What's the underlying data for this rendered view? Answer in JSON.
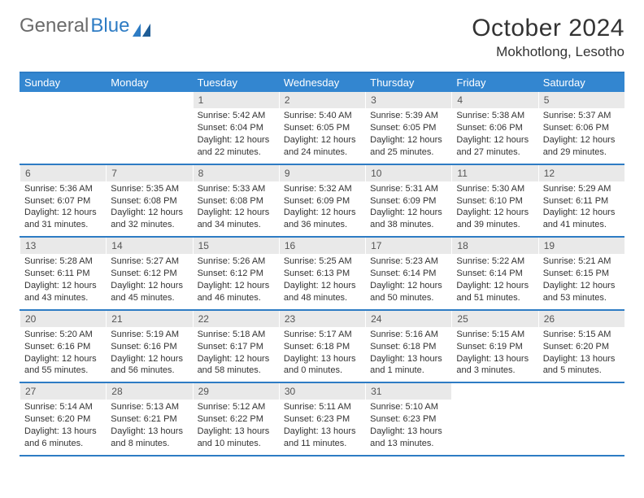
{
  "logo": {
    "text_gray": "General",
    "text_blue": "Blue"
  },
  "header": {
    "title": "October 2024",
    "location": "Mokhotlong, Lesotho"
  },
  "colors": {
    "brand_blue": "#2e7cc4",
    "header_blue": "#3386d0",
    "numbar_bg": "#e9e9e9",
    "text": "#333333",
    "text_muted": "#555555",
    "logo_gray": "#6b6b6b"
  },
  "weekdays": [
    "Sunday",
    "Monday",
    "Tuesday",
    "Wednesday",
    "Thursday",
    "Friday",
    "Saturday"
  ],
  "weeks": [
    [
      {
        "empty": true
      },
      {
        "empty": true
      },
      {
        "num": "1",
        "sunrise": "Sunrise: 5:42 AM",
        "sunset": "Sunset: 6:04 PM",
        "daylight1": "Daylight: 12 hours",
        "daylight2": "and 22 minutes."
      },
      {
        "num": "2",
        "sunrise": "Sunrise: 5:40 AM",
        "sunset": "Sunset: 6:05 PM",
        "daylight1": "Daylight: 12 hours",
        "daylight2": "and 24 minutes."
      },
      {
        "num": "3",
        "sunrise": "Sunrise: 5:39 AM",
        "sunset": "Sunset: 6:05 PM",
        "daylight1": "Daylight: 12 hours",
        "daylight2": "and 25 minutes."
      },
      {
        "num": "4",
        "sunrise": "Sunrise: 5:38 AM",
        "sunset": "Sunset: 6:06 PM",
        "daylight1": "Daylight: 12 hours",
        "daylight2": "and 27 minutes."
      },
      {
        "num": "5",
        "sunrise": "Sunrise: 5:37 AM",
        "sunset": "Sunset: 6:06 PM",
        "daylight1": "Daylight: 12 hours",
        "daylight2": "and 29 minutes."
      }
    ],
    [
      {
        "num": "6",
        "sunrise": "Sunrise: 5:36 AM",
        "sunset": "Sunset: 6:07 PM",
        "daylight1": "Daylight: 12 hours",
        "daylight2": "and 31 minutes."
      },
      {
        "num": "7",
        "sunrise": "Sunrise: 5:35 AM",
        "sunset": "Sunset: 6:08 PM",
        "daylight1": "Daylight: 12 hours",
        "daylight2": "and 32 minutes."
      },
      {
        "num": "8",
        "sunrise": "Sunrise: 5:33 AM",
        "sunset": "Sunset: 6:08 PM",
        "daylight1": "Daylight: 12 hours",
        "daylight2": "and 34 minutes."
      },
      {
        "num": "9",
        "sunrise": "Sunrise: 5:32 AM",
        "sunset": "Sunset: 6:09 PM",
        "daylight1": "Daylight: 12 hours",
        "daylight2": "and 36 minutes."
      },
      {
        "num": "10",
        "sunrise": "Sunrise: 5:31 AM",
        "sunset": "Sunset: 6:09 PM",
        "daylight1": "Daylight: 12 hours",
        "daylight2": "and 38 minutes."
      },
      {
        "num": "11",
        "sunrise": "Sunrise: 5:30 AM",
        "sunset": "Sunset: 6:10 PM",
        "daylight1": "Daylight: 12 hours",
        "daylight2": "and 39 minutes."
      },
      {
        "num": "12",
        "sunrise": "Sunrise: 5:29 AM",
        "sunset": "Sunset: 6:11 PM",
        "daylight1": "Daylight: 12 hours",
        "daylight2": "and 41 minutes."
      }
    ],
    [
      {
        "num": "13",
        "sunrise": "Sunrise: 5:28 AM",
        "sunset": "Sunset: 6:11 PM",
        "daylight1": "Daylight: 12 hours",
        "daylight2": "and 43 minutes."
      },
      {
        "num": "14",
        "sunrise": "Sunrise: 5:27 AM",
        "sunset": "Sunset: 6:12 PM",
        "daylight1": "Daylight: 12 hours",
        "daylight2": "and 45 minutes."
      },
      {
        "num": "15",
        "sunrise": "Sunrise: 5:26 AM",
        "sunset": "Sunset: 6:12 PM",
        "daylight1": "Daylight: 12 hours",
        "daylight2": "and 46 minutes."
      },
      {
        "num": "16",
        "sunrise": "Sunrise: 5:25 AM",
        "sunset": "Sunset: 6:13 PM",
        "daylight1": "Daylight: 12 hours",
        "daylight2": "and 48 minutes."
      },
      {
        "num": "17",
        "sunrise": "Sunrise: 5:23 AM",
        "sunset": "Sunset: 6:14 PM",
        "daylight1": "Daylight: 12 hours",
        "daylight2": "and 50 minutes."
      },
      {
        "num": "18",
        "sunrise": "Sunrise: 5:22 AM",
        "sunset": "Sunset: 6:14 PM",
        "daylight1": "Daylight: 12 hours",
        "daylight2": "and 51 minutes."
      },
      {
        "num": "19",
        "sunrise": "Sunrise: 5:21 AM",
        "sunset": "Sunset: 6:15 PM",
        "daylight1": "Daylight: 12 hours",
        "daylight2": "and 53 minutes."
      }
    ],
    [
      {
        "num": "20",
        "sunrise": "Sunrise: 5:20 AM",
        "sunset": "Sunset: 6:16 PM",
        "daylight1": "Daylight: 12 hours",
        "daylight2": "and 55 minutes."
      },
      {
        "num": "21",
        "sunrise": "Sunrise: 5:19 AM",
        "sunset": "Sunset: 6:16 PM",
        "daylight1": "Daylight: 12 hours",
        "daylight2": "and 56 minutes."
      },
      {
        "num": "22",
        "sunrise": "Sunrise: 5:18 AM",
        "sunset": "Sunset: 6:17 PM",
        "daylight1": "Daylight: 12 hours",
        "daylight2": "and 58 minutes."
      },
      {
        "num": "23",
        "sunrise": "Sunrise: 5:17 AM",
        "sunset": "Sunset: 6:18 PM",
        "daylight1": "Daylight: 13 hours",
        "daylight2": "and 0 minutes."
      },
      {
        "num": "24",
        "sunrise": "Sunrise: 5:16 AM",
        "sunset": "Sunset: 6:18 PM",
        "daylight1": "Daylight: 13 hours",
        "daylight2": "and 1 minute."
      },
      {
        "num": "25",
        "sunrise": "Sunrise: 5:15 AM",
        "sunset": "Sunset: 6:19 PM",
        "daylight1": "Daylight: 13 hours",
        "daylight2": "and 3 minutes."
      },
      {
        "num": "26",
        "sunrise": "Sunrise: 5:15 AM",
        "sunset": "Sunset: 6:20 PM",
        "daylight1": "Daylight: 13 hours",
        "daylight2": "and 5 minutes."
      }
    ],
    [
      {
        "num": "27",
        "sunrise": "Sunrise: 5:14 AM",
        "sunset": "Sunset: 6:20 PM",
        "daylight1": "Daylight: 13 hours",
        "daylight2": "and 6 minutes."
      },
      {
        "num": "28",
        "sunrise": "Sunrise: 5:13 AM",
        "sunset": "Sunset: 6:21 PM",
        "daylight1": "Daylight: 13 hours",
        "daylight2": "and 8 minutes."
      },
      {
        "num": "29",
        "sunrise": "Sunrise: 5:12 AM",
        "sunset": "Sunset: 6:22 PM",
        "daylight1": "Daylight: 13 hours",
        "daylight2": "and 10 minutes."
      },
      {
        "num": "30",
        "sunrise": "Sunrise: 5:11 AM",
        "sunset": "Sunset: 6:23 PM",
        "daylight1": "Daylight: 13 hours",
        "daylight2": "and 11 minutes."
      },
      {
        "num": "31",
        "sunrise": "Sunrise: 5:10 AM",
        "sunset": "Sunset: 6:23 PM",
        "daylight1": "Daylight: 13 hours",
        "daylight2": "and 13 minutes."
      },
      {
        "empty": true
      },
      {
        "empty": true
      }
    ]
  ]
}
